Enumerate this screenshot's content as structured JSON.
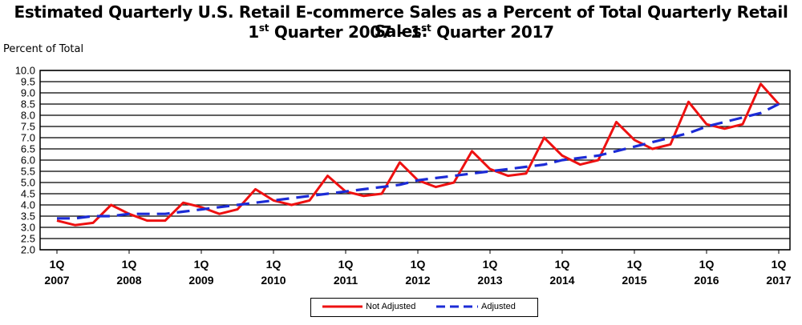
{
  "title_line1": "Estimated Quarterly U.S. Retail E-commerce Sales as a Percent of Total Quarterly Retail Sales:",
  "title_line2": {
    "pre": "1",
    "sup1": "st",
    "mid": " Quarter 2007 – 1",
    "sup2": "st",
    "post": "  Quarter 2017"
  },
  "ylabel": "Percent of Total",
  "colors": {
    "not_adjusted": "#ee1111",
    "adjusted": "#1c2bd6"
  },
  "chart_data": {
    "type": "line",
    "title": "Estimated Quarterly U.S. Retail E-commerce Sales as a Percent of Total Quarterly Retail Sales: 1st Quarter 2007 – 1st Quarter 2017",
    "ylabel": "Percent of Total",
    "ylim": [
      2.0,
      10.0
    ],
    "yticks": [
      "2.0",
      "2.5",
      "3.0",
      "3.5",
      "4.0",
      "4.5",
      "5.0",
      "5.5",
      "6.0",
      "6.5",
      "7.0",
      "7.5",
      "8.0",
      "8.5",
      "9.0",
      "9.5",
      "10.0"
    ],
    "xticks": [
      {
        "q": "1Q",
        "year": "2007",
        "index": 0
      },
      {
        "q": "1Q",
        "year": "2008",
        "index": 4
      },
      {
        "q": "1Q",
        "year": "2009",
        "index": 8
      },
      {
        "q": "1Q",
        "year": "2010",
        "index": 12
      },
      {
        "q": "1Q",
        "year": "2011",
        "index": 16
      },
      {
        "q": "1Q",
        "year": "2012",
        "index": 20
      },
      {
        "q": "1Q",
        "year": "2013",
        "index": 24
      },
      {
        "q": "1Q",
        "year": "2014",
        "index": 28
      },
      {
        "q": "1Q",
        "year": "2015",
        "index": 32
      },
      {
        "q": "1Q",
        "year": "2016",
        "index": 36
      },
      {
        "q": "1Q",
        "year": "2017",
        "index": 40
      }
    ],
    "grid": true,
    "legend": "bottom-center",
    "series": [
      {
        "name": "Not Adjusted",
        "style": "solid",
        "values": [
          3.3,
          3.1,
          3.2,
          4.0,
          3.6,
          3.3,
          3.3,
          4.1,
          3.9,
          3.6,
          3.8,
          4.7,
          4.2,
          4.0,
          4.2,
          5.3,
          4.6,
          4.4,
          4.5,
          5.9,
          5.1,
          4.8,
          5.0,
          6.4,
          5.6,
          5.3,
          5.4,
          7.0,
          6.2,
          5.8,
          6.0,
          7.7,
          6.9,
          6.5,
          6.7,
          8.6,
          7.6,
          7.4,
          7.6,
          9.4,
          8.5
        ]
      },
      {
        "name": "Adjusted",
        "style": "dashed",
        "values": [
          3.4,
          3.4,
          3.5,
          3.5,
          3.6,
          3.6,
          3.6,
          3.7,
          3.8,
          3.9,
          4.0,
          4.1,
          4.2,
          4.3,
          4.4,
          4.5,
          4.6,
          4.7,
          4.8,
          4.9,
          5.1,
          5.2,
          5.3,
          5.4,
          5.5,
          5.6,
          5.7,
          5.8,
          6.0,
          6.1,
          6.2,
          6.4,
          6.6,
          6.8,
          7.0,
          7.2,
          7.5,
          7.7,
          7.9,
          8.1,
          8.5
        ]
      }
    ]
  }
}
